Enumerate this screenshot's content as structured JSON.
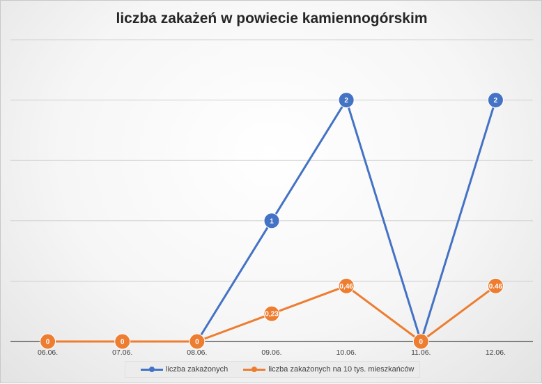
{
  "chart_data": {
    "type": "line",
    "title": "liczba zakażeń w powiecie kamiennogórskim",
    "categories": [
      "06.06.",
      "07.06.",
      "08.06.",
      "09.06.",
      "10.06.",
      "11.06.",
      "12.06."
    ],
    "ylim": [
      0,
      2.5
    ],
    "grid": true,
    "legend": "bottom",
    "series": [
      {
        "name": "liczba zakażonych",
        "color": "#4472c4",
        "values": [
          0,
          0,
          0,
          1,
          2,
          0,
          2
        ],
        "labels": [
          null,
          null,
          null,
          "1",
          "2",
          null,
          "2"
        ]
      },
      {
        "name": "liczba zakażonych na 10 tys. mieszkańców",
        "color": "#ed7d31",
        "values": [
          0,
          0,
          0,
          0.23,
          0.46,
          0,
          0.46
        ],
        "labels": [
          "0",
          "0",
          "0",
          "0,23",
          "0,46",
          "0",
          "0.46"
        ]
      }
    ]
  }
}
